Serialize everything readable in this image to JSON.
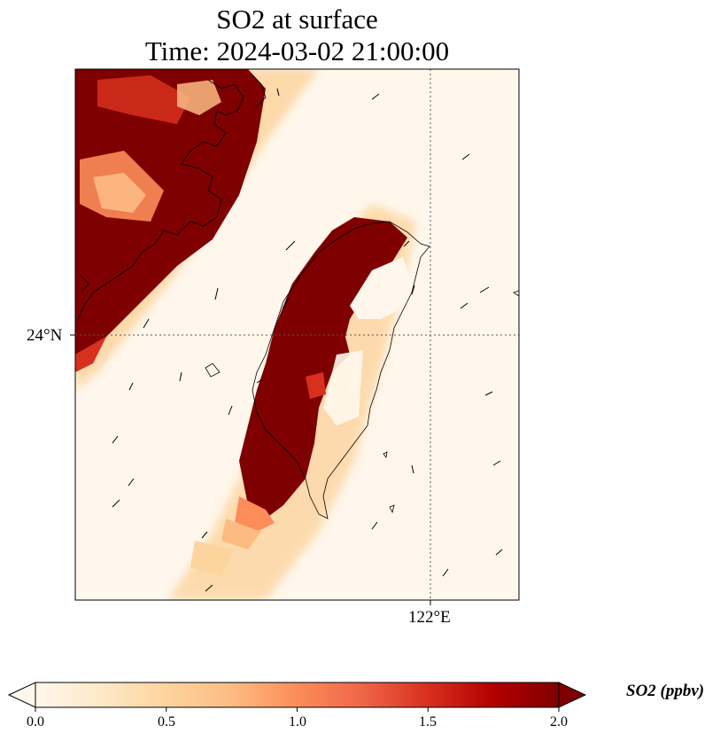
{
  "title_line1": "SO2 at surface",
  "title_line2": "Time: 2024-03-02 21:00:00",
  "lat_label": "24°N",
  "lon_label": "122°E",
  "colorbar": {
    "label": "SO2 (ppbv)",
    "min": 0.0,
    "max": 2.0,
    "ticks": [
      "0.0",
      "0.5",
      "1.0",
      "1.5",
      "2.0"
    ],
    "colormap": "OrRd",
    "extend": "both",
    "colors": [
      "#fff7ec",
      "#fee8c8",
      "#fdd49e",
      "#fdbb84",
      "#fc8d59",
      "#ef6548",
      "#d7301f",
      "#b30000",
      "#7f0000"
    ]
  },
  "map": {
    "gridlines": "dotted",
    "coastline_color": "#000000",
    "wind_vectors": "black arrows"
  }
}
